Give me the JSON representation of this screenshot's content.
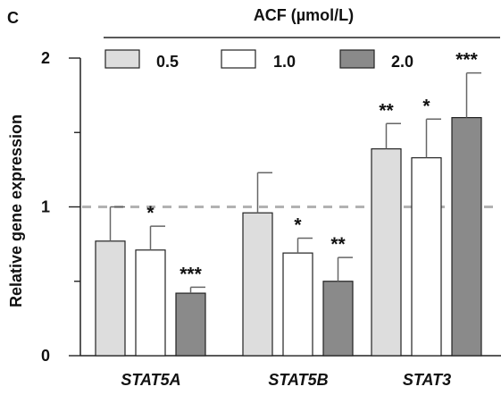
{
  "panel_label": "C",
  "legend_title": "ACF (µmol/L)",
  "colors": {
    "light_gray": "#dddddd",
    "white": "#ffffff",
    "dark_gray": "#8a8a8a",
    "axis": "#222222",
    "error_bar": "#666666",
    "reference_line": "#b2b2b2"
  },
  "chart_data": {
    "type": "bar",
    "title": "",
    "xlabel": "",
    "ylabel": "Relative gene expression",
    "ylim": [
      0,
      2
    ],
    "yticks": [
      0,
      1,
      2
    ],
    "ytick_labels": [
      "0",
      "1",
      "2"
    ],
    "categories": [
      "STAT5A",
      "STAT5B",
      "STAT3"
    ],
    "reference_line": 1,
    "grid": false,
    "legend_placement": "top",
    "series": [
      {
        "name": "0.5",
        "color": "#dddddd",
        "values": [
          0.77,
          0.96,
          1.39
        ],
        "errors": [
          0.23,
          0.27,
          0.17
        ],
        "significance": [
          "",
          "",
          "**"
        ]
      },
      {
        "name": "1.0",
        "color": "#ffffff",
        "values": [
          0.71,
          0.69,
          1.33
        ],
        "errors": [
          0.16,
          0.1,
          0.26
        ],
        "significance": [
          "*",
          "*",
          "*"
        ]
      },
      {
        "name": "2.0",
        "color": "#8a8a8a",
        "values": [
          0.42,
          0.5,
          1.6
        ],
        "errors": [
          0.04,
          0.16,
          0.3
        ],
        "significance": [
          "***",
          "**",
          "***"
        ]
      }
    ]
  }
}
